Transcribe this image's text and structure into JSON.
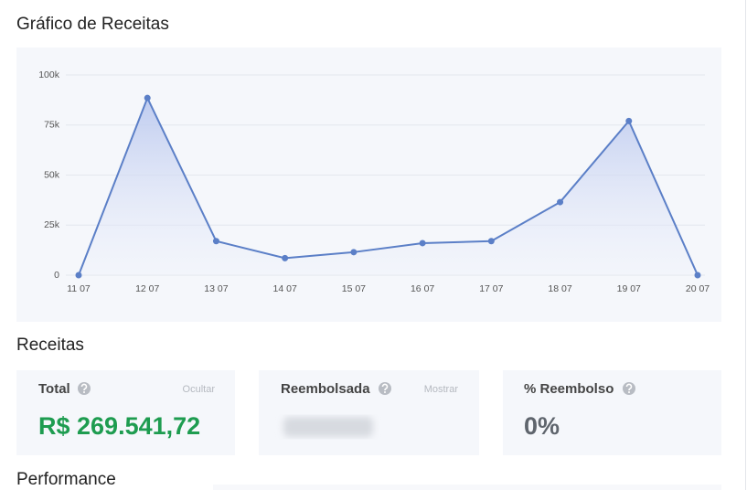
{
  "header": {
    "title": "Gráfico de Receitas"
  },
  "chart_data": {
    "type": "area",
    "categories": [
      "11 07",
      "12 07",
      "13 07",
      "14 07",
      "15 07",
      "16 07",
      "17 07",
      "18 07",
      "19 07",
      "20 07"
    ],
    "series": [
      {
        "color": "#5b7fc7",
        "values": [
          0,
          88500,
          17000,
          8500,
          11500,
          16000,
          17000,
          36500,
          77000,
          0
        ]
      }
    ],
    "ylim": [
      0,
      100000
    ],
    "yticks": [
      0,
      {
        "value": 25000,
        "label": "25k"
      },
      {
        "value": 50000,
        "label": "50k"
      },
      {
        "value": 75000,
        "label": "75k"
      },
      {
        "value": 100000,
        "label": "100k"
      }
    ],
    "grid": true
  },
  "sections": {
    "revenue": "Receitas",
    "performance": "Performance"
  },
  "cards": [
    {
      "label": "Total",
      "action": "Ocultar",
      "value": "R$ 269.541,72"
    },
    {
      "label": "Reembolsada",
      "action": "Mostrar"
    },
    {
      "label": "% Reembolso",
      "value": "0%"
    }
  ]
}
